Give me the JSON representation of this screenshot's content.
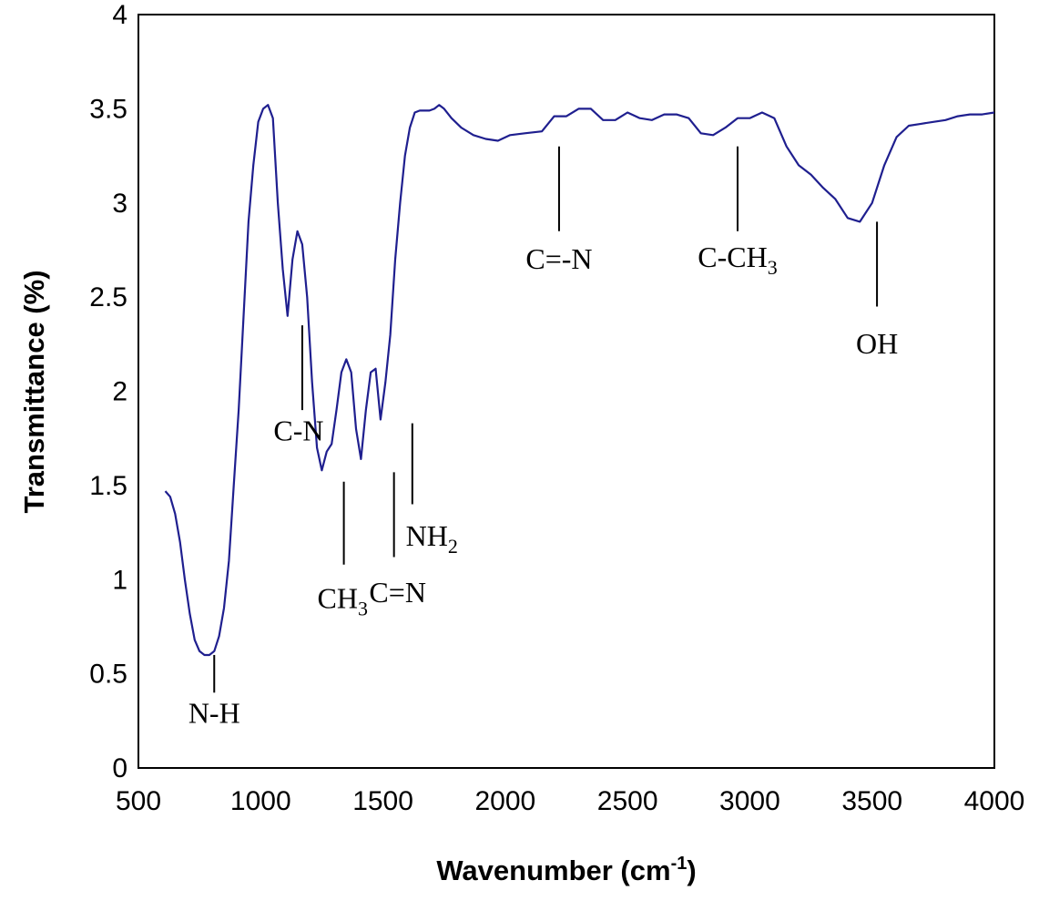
{
  "chart_data": {
    "type": "line",
    "title": "",
    "xlabel": "Wavenumber (cm",
    "xlabel_sup": "-1",
    "xlabel_close": ")",
    "ylabel": "Transmittance (%)",
    "xlim": [
      500,
      4000
    ],
    "ylim": [
      0,
      4
    ],
    "xticks": [
      "500",
      "1000",
      "1500",
      "2000",
      "2500",
      "3000",
      "3500",
      "4000"
    ],
    "yticks": [
      "0",
      "0.5",
      "1",
      "1.5",
      "2",
      "2.5",
      "3",
      "3.5",
      "4"
    ],
    "grid": false,
    "legend": "none",
    "line_color": "#1f1f8f",
    "series": [
      {
        "x": [
          610,
          630,
          650,
          670,
          690,
          710,
          730,
          750,
          770,
          790,
          810,
          830,
          850,
          870,
          890,
          910,
          930,
          950,
          970,
          990,
          1010,
          1030,
          1050,
          1070,
          1090,
          1110,
          1130,
          1150,
          1170,
          1190,
          1210,
          1230,
          1250,
          1270,
          1290,
          1310,
          1330,
          1350,
          1370,
          1390,
          1410,
          1430,
          1450,
          1470,
          1490,
          1510,
          1530,
          1550,
          1570,
          1590,
          1610,
          1630,
          1650,
          1670,
          1690,
          1710,
          1730,
          1750,
          1780,
          1820,
          1870,
          1920,
          1970,
          2020,
          2080,
          2150,
          2200,
          2250,
          2300,
          2350,
          2400,
          2450,
          2500,
          2550,
          2600,
          2650,
          2700,
          2750,
          2800,
          2850,
          2900,
          2950,
          3000,
          3050,
          3100,
          3150,
          3200,
          3250,
          3300,
          3350,
          3400,
          3450,
          3500,
          3550,
          3600,
          3650,
          3700,
          3750,
          3800,
          3850,
          3900,
          3950,
          4000
        ],
        "y": [
          1.47,
          1.44,
          1.35,
          1.2,
          1.0,
          0.82,
          0.68,
          0.62,
          0.6,
          0.6,
          0.62,
          0.7,
          0.85,
          1.1,
          1.5,
          1.9,
          2.4,
          2.9,
          3.2,
          3.43,
          3.5,
          3.52,
          3.45,
          3.0,
          2.65,
          2.4,
          2.7,
          2.85,
          2.78,
          2.5,
          2.05,
          1.7,
          1.58,
          1.68,
          1.72,
          1.9,
          2.1,
          2.17,
          2.1,
          1.8,
          1.64,
          1.9,
          2.1,
          2.12,
          1.85,
          2.05,
          2.3,
          2.7,
          3.0,
          3.25,
          3.4,
          3.48,
          3.49,
          3.49,
          3.49,
          3.5,
          3.52,
          3.5,
          3.45,
          3.4,
          3.36,
          3.34,
          3.33,
          3.36,
          3.37,
          3.38,
          3.46,
          3.46,
          3.5,
          3.5,
          3.44,
          3.44,
          3.48,
          3.45,
          3.44,
          3.47,
          3.47,
          3.45,
          3.37,
          3.36,
          3.4,
          3.45,
          3.45,
          3.48,
          3.45,
          3.3,
          3.2,
          3.15,
          3.08,
          3.02,
          2.92,
          2.9,
          3.0,
          3.2,
          3.35,
          3.41,
          3.42,
          3.43,
          3.44,
          3.46,
          3.47,
          3.47,
          3.48
        ]
      }
    ],
    "annotations": [
      {
        "id": "nh",
        "label": "N-H",
        "x": 810,
        "tick_y": [
          0.6,
          0.4
        ],
        "label_pos": [
          810,
          0.24
        ],
        "anchor": "middle"
      },
      {
        "id": "cn",
        "label": "C-N",
        "x": 1170,
        "tick_y": [
          2.35,
          1.9
        ],
        "label_pos": [
          1155,
          1.74
        ],
        "anchor": "middle"
      },
      {
        "id": "ch3",
        "label": "CH",
        "sub": "3",
        "x": 1340,
        "tick_y": [
          1.52,
          1.08
        ],
        "label_pos": [
          1335,
          0.85
        ],
        "anchor": "middle"
      },
      {
        "id": "c-eq-n",
        "label": "C=N",
        "x": 1545,
        "tick_y": [
          1.57,
          1.12
        ],
        "label_pos": [
          1560,
          0.88
        ],
        "anchor": "middle"
      },
      {
        "id": "nh2",
        "label": "NH",
        "sub": "2",
        "x": 1620,
        "tick_y": [
          1.83,
          1.4
        ],
        "label_pos": [
          1700,
          1.18
        ],
        "anchor": "middle"
      },
      {
        "id": "c-triple-n",
        "label": "C=-N",
        "x": 2220,
        "tick_y": [
          3.3,
          2.85
        ],
        "label_pos": [
          2220,
          2.65
        ],
        "anchor": "middle"
      },
      {
        "id": "c-ch3",
        "label": "C-CH",
        "sub": "3",
        "x": 2950,
        "tick_y": [
          3.3,
          2.85
        ],
        "label_pos": [
          2950,
          2.66
        ],
        "anchor": "middle"
      },
      {
        "id": "oh",
        "label": "OH",
        "x": 3520,
        "tick_y": [
          2.9,
          2.45
        ],
        "label_pos": [
          3520,
          2.2
        ],
        "anchor": "middle"
      }
    ]
  }
}
